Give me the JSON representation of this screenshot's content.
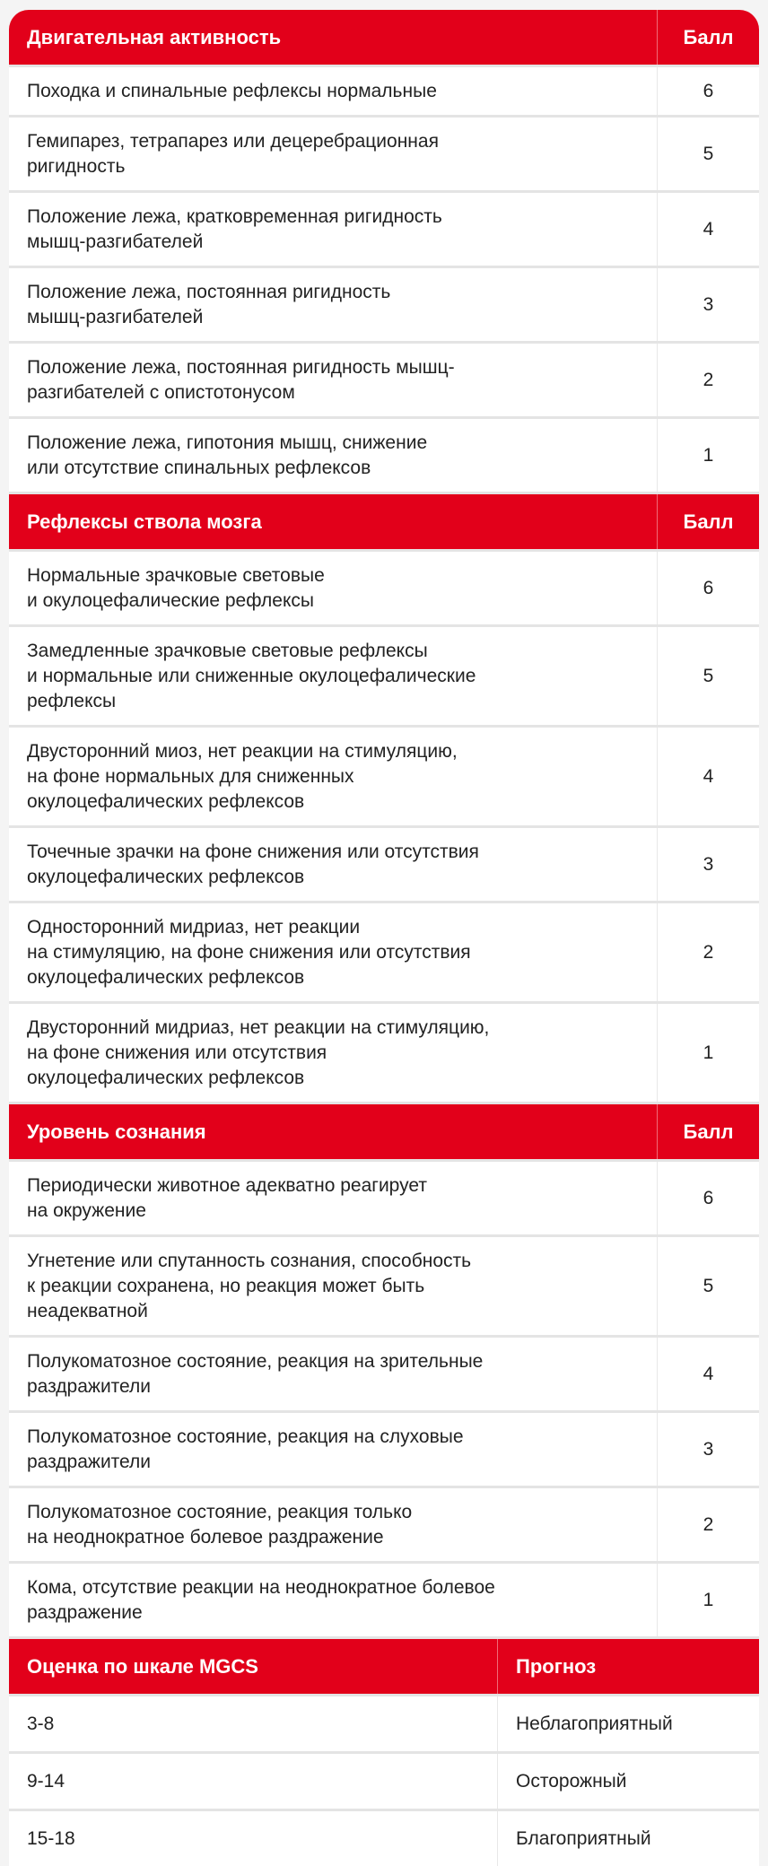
{
  "colors": {
    "accent": "#e2001a",
    "background": "#f4f4f4",
    "divider": "#e4e4e4"
  },
  "sections": [
    {
      "title": "Двигательная активность",
      "score_label": "Балл",
      "rows": [
        {
          "lines": [
            "Походка и спинальные рефлексы нормальные"
          ],
          "score": "6"
        },
        {
          "lines": [
            "Гемипарез, тетрапарез или децеребрационная",
            "ригидность"
          ],
          "score": "5"
        },
        {
          "lines": [
            "Положение лежа, кратковременная ригидность",
            "мышц-разгибателей"
          ],
          "score": "4"
        },
        {
          "lines": [
            "Положение лежа, постоянная ригидность",
            "мышц-разгибателей"
          ],
          "score": "3"
        },
        {
          "lines": [
            "Положение лежа, постоянная ригидность мышц-",
            "разгибателей с опистотонусом"
          ],
          "score": "2"
        },
        {
          "lines": [
            "Положение лежа, гипотония мышц, снижение",
            "или отсутствие спинальных рефлексов"
          ],
          "score": "1"
        }
      ]
    },
    {
      "title": "Рефлексы ствола мозга",
      "score_label": "Балл",
      "rows": [
        {
          "lines": [
            "Нормальные зрачковые световые",
            "и окулоцефалические рефлексы"
          ],
          "score": "6"
        },
        {
          "lines": [
            "Замедленные зрачковые световые рефлексы",
            "и нормальные или сниженные окулоцефалические",
            "рефлексы"
          ],
          "score": "5"
        },
        {
          "lines": [
            "Двусторонний миоз, нет реакции на стимуляцию,",
            "на фоне нормальных для сниженных",
            "окулоцефалических рефлексов"
          ],
          "score": "4"
        },
        {
          "lines": [
            "Точечные зрачки на фоне снижения или отсутствия",
            "окулоцефалических рефлексов"
          ],
          "score": "3"
        },
        {
          "lines": [
            "Односторонний мидриаз, нет реакции",
            "на стимуляцию, на фоне снижения или отсутствия",
            "окулоцефалических рефлексов"
          ],
          "score": "2"
        },
        {
          "lines": [
            "Двусторонний мидриаз, нет реакции на стимуляцию,",
            "на фоне снижения или отсутствия",
            "окулоцефалических рефлексов"
          ],
          "score": "1"
        }
      ]
    },
    {
      "title": "Уровень сознания",
      "score_label": "Балл",
      "rows": [
        {
          "lines": [
            "Периодически животное адекватно реагирует",
            "на окружение"
          ],
          "score": "6"
        },
        {
          "lines": [
            "Угнетение или спутанность сознания, способность",
            "к реакции сохранена, но реакция может быть",
            "неадекватной"
          ],
          "score": "5"
        },
        {
          "lines": [
            "Полукоматозное состояние, реакция на зрительные",
            "раздражители"
          ],
          "score": "4"
        },
        {
          "lines": [
            "Полукоматозное состояние, реакция на слуховые",
            "раздражители"
          ],
          "score": "3"
        },
        {
          "lines": [
            "Полукоматозное состояние, реакция только",
            "на неоднократное болевое раздражение"
          ],
          "score": "2"
        },
        {
          "lines": [
            "Кома, отсутствие реакции на неоднократное болевое",
            "раздражение"
          ],
          "score": "1"
        }
      ]
    }
  ],
  "summary": {
    "col1": "Оценка по шкале MGCS",
    "col2": "Прогноз",
    "rows": [
      {
        "range": "3-8",
        "prognosis": "Неблагоприятный"
      },
      {
        "range": "9-14",
        "prognosis": "Осторожный"
      },
      {
        "range": "15-18",
        "prognosis": "Благоприятный"
      }
    ]
  }
}
